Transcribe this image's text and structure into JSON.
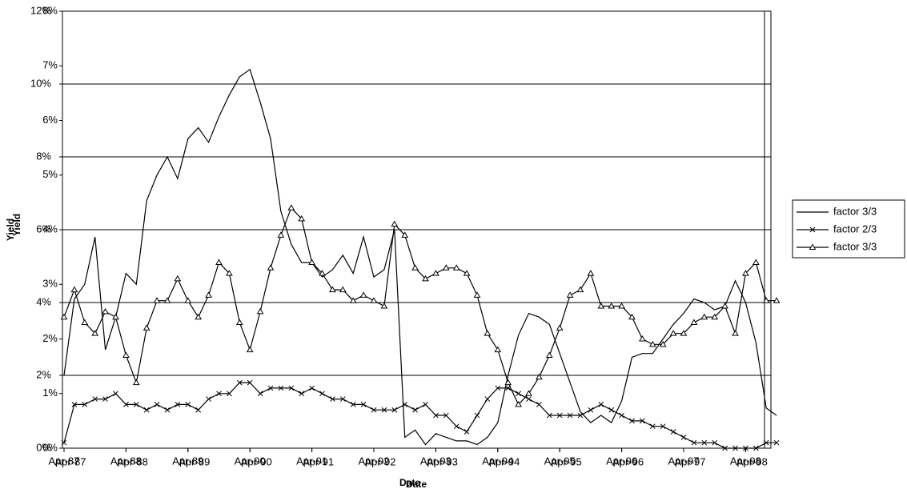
{
  "chart_data": [
    {
      "type": "line",
      "y_label": "Yield",
      "x_label": "Date",
      "categories": [
        "Apr-87",
        null,
        null,
        null,
        null,
        null,
        "Apr-88",
        null,
        null,
        null,
        null,
        null,
        "Apr-89",
        null,
        null,
        null,
        null,
        null,
        "Apr-90",
        null,
        null,
        null,
        null,
        null,
        "Apr-91",
        null,
        null,
        null,
        null,
        null,
        "Apr-92",
        null,
        null,
        null,
        null,
        null,
        "Apr-93",
        null,
        null,
        null,
        null,
        null,
        "Apr-94",
        null,
        null,
        null,
        null,
        null,
        "Apr-95",
        null,
        null,
        null,
        null,
        null,
        "Apr-96",
        null,
        null,
        null,
        null,
        null,
        "Apr-97",
        null,
        null,
        null,
        null,
        null,
        "Apr-98",
        null,
        null,
        null
      ],
      "ylim": [
        0,
        12
      ],
      "yticks": [
        {
          "value": 0,
          "label": "0%"
        },
        {
          "value": 2,
          "label": "2%"
        },
        {
          "value": 4,
          "label": "4%"
        },
        {
          "value": 6,
          "label": "6%"
        },
        {
          "value": 8,
          "label": "8%"
        },
        {
          "value": 10,
          "label": "10%"
        },
        {
          "value": 12,
          "label": "12%"
        }
      ],
      "grid": true,
      "legend": "right",
      "series": [
        {
          "name": "factor 3/3",
          "color": "#000000",
          "marker": "none",
          "values": [
            2.0,
            4.1,
            4.5,
            5.8,
            2.7,
            3.6,
            4.8,
            4.5,
            6.8,
            7.5,
            8.0,
            7.4,
            8.5,
            8.8,
            8.4,
            9.1,
            9.7,
            10.2,
            10.4,
            9.5,
            8.5,
            6.5,
            5.6,
            5.1,
            5.1,
            4.7,
            4.9,
            5.3,
            4.8,
            5.8,
            4.7,
            4.9,
            6.0,
            0.3,
            0.5,
            0.1,
            0.4,
            0.3,
            0.2,
            0.2,
            0.1,
            0.3,
            0.7,
            2.0,
            3.1,
            3.7,
            3.6,
            3.4,
            2.6,
            1.8,
            1.0,
            0.7,
            0.9,
            0.7,
            1.3,
            2.5,
            2.6,
            2.6,
            3.0,
            3.4,
            3.7,
            4.1,
            4.0,
            3.8,
            3.9,
            4.6,
            4.0,
            2.9,
            1.1,
            0.9
          ]
        }
      ]
    },
    {
      "type": "line",
      "y_label": "Yield",
      "x_label": "Date",
      "categories": [
        "Apr-87",
        null,
        null,
        null,
        null,
        null,
        "Apr-88",
        null,
        null,
        null,
        null,
        null,
        "Apr-89",
        null,
        null,
        null,
        null,
        null,
        "Apr-90",
        null,
        null,
        null,
        null,
        null,
        "Apr-91",
        null,
        null,
        null,
        null,
        null,
        "Apr-92",
        null,
        null,
        null,
        null,
        null,
        "Apr-93",
        null,
        null,
        null,
        null,
        null,
        "Apr-94",
        null,
        null,
        null,
        null,
        null,
        "Apr-95",
        null,
        null,
        null,
        null,
        null,
        "Apr-96",
        null,
        null,
        null,
        null,
        null,
        "Apr-97",
        null,
        null,
        null,
        null,
        null,
        "Apr-98",
        null,
        null,
        null
      ],
      "ylim": [
        0,
        8
      ],
      "yticks": [
        {
          "value": 0,
          "label": "0%"
        },
        {
          "value": 1,
          "label": "1%"
        },
        {
          "value": 2,
          "label": "2%"
        },
        {
          "value": 3,
          "label": "3%"
        },
        {
          "value": 4,
          "label": "4%"
        },
        {
          "value": 5,
          "label": "5%"
        },
        {
          "value": 6,
          "label": "6%"
        },
        {
          "value": 7,
          "label": "7%"
        },
        {
          "value": 8,
          "label": "8%"
        }
      ],
      "grid": false,
      "legend": "right",
      "series": [
        {
          "name": "factor 2/3",
          "color": "#000000",
          "marker": "x",
          "values": [
            0.1,
            0.8,
            0.8,
            0.9,
            0.9,
            1.0,
            0.8,
            0.8,
            0.7,
            0.8,
            0.7,
            0.8,
            0.8,
            0.7,
            0.9,
            1.0,
            1.0,
            1.2,
            1.2,
            1.0,
            1.1,
            1.1,
            1.1,
            1.0,
            1.1,
            1.0,
            0.9,
            0.9,
            0.8,
            0.8,
            0.7,
            0.7,
            0.7,
            0.8,
            0.7,
            0.8,
            0.6,
            0.6,
            0.4,
            0.3,
            0.6,
            0.9,
            1.1,
            1.1,
            1.0,
            0.9,
            0.8,
            0.6,
            0.6,
            0.6,
            0.6,
            0.7,
            0.8,
            0.7,
            0.6,
            0.5,
            0.5,
            0.4,
            0.4,
            0.3,
            0.2,
            0.1,
            0.1,
            0.1,
            0.0,
            0.0,
            0.0,
            0.0,
            0.1,
            0.1
          ]
        },
        {
          "name": "factor 3/3",
          "color": "#000000",
          "marker": "triangle",
          "values": [
            2.4,
            2.9,
            2.3,
            2.1,
            2.5,
            2.4,
            1.7,
            1.2,
            2.2,
            2.7,
            2.7,
            3.1,
            2.7,
            2.4,
            2.8,
            3.4,
            3.2,
            2.3,
            1.8,
            2.5,
            3.3,
            3.9,
            4.4,
            4.2,
            3.4,
            3.2,
            2.9,
            2.9,
            2.7,
            2.8,
            2.7,
            2.6,
            4.1,
            3.9,
            3.3,
            3.1,
            3.2,
            3.3,
            3.3,
            3.2,
            2.8,
            2.1,
            1.8,
            1.2,
            0.8,
            1.0,
            1.3,
            1.7,
            2.2,
            2.8,
            2.9,
            3.2,
            2.6,
            2.6,
            2.6,
            2.4,
            2.0,
            1.9,
            1.9,
            2.1,
            2.1,
            2.3,
            2.4,
            2.4,
            2.6,
            2.1,
            3.2,
            3.4,
            2.7,
            2.7
          ]
        }
      ]
    }
  ]
}
